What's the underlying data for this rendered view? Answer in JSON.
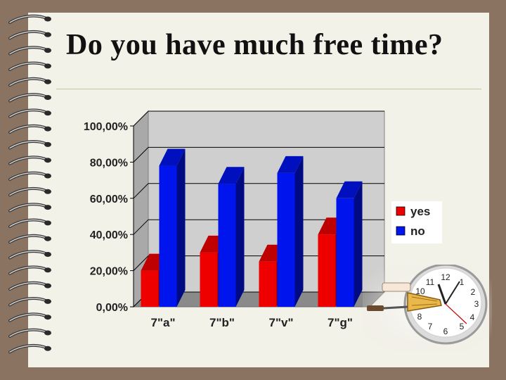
{
  "slide": {
    "title": "Do you have much free time?"
  },
  "colors": {
    "background": "#8a7361",
    "paper": "#f3f2e9",
    "yes": "#ee0000",
    "no": "#0014ee"
  },
  "icons": {
    "binding": "spiral-binding-icon",
    "clock": "clock-icon"
  },
  "chart_data": {
    "type": "bar",
    "categories": [
      "7\"a\"",
      "7\"b\"",
      "7\"v\"",
      "7\"g\""
    ],
    "series": [
      {
        "name": "yes",
        "values": [
          20,
          30,
          25,
          40
        ],
        "color": "#ee0000"
      },
      {
        "name": "no",
        "values": [
          78,
          68,
          74,
          60
        ],
        "color": "#0014ee"
      }
    ],
    "ylim": [
      0,
      100
    ],
    "yticks": [
      "0,00%",
      "20,00%",
      "40,00%",
      "60,00%",
      "80,00%",
      "100,00%"
    ],
    "grid": true,
    "legend": "right",
    "style": "3d"
  }
}
